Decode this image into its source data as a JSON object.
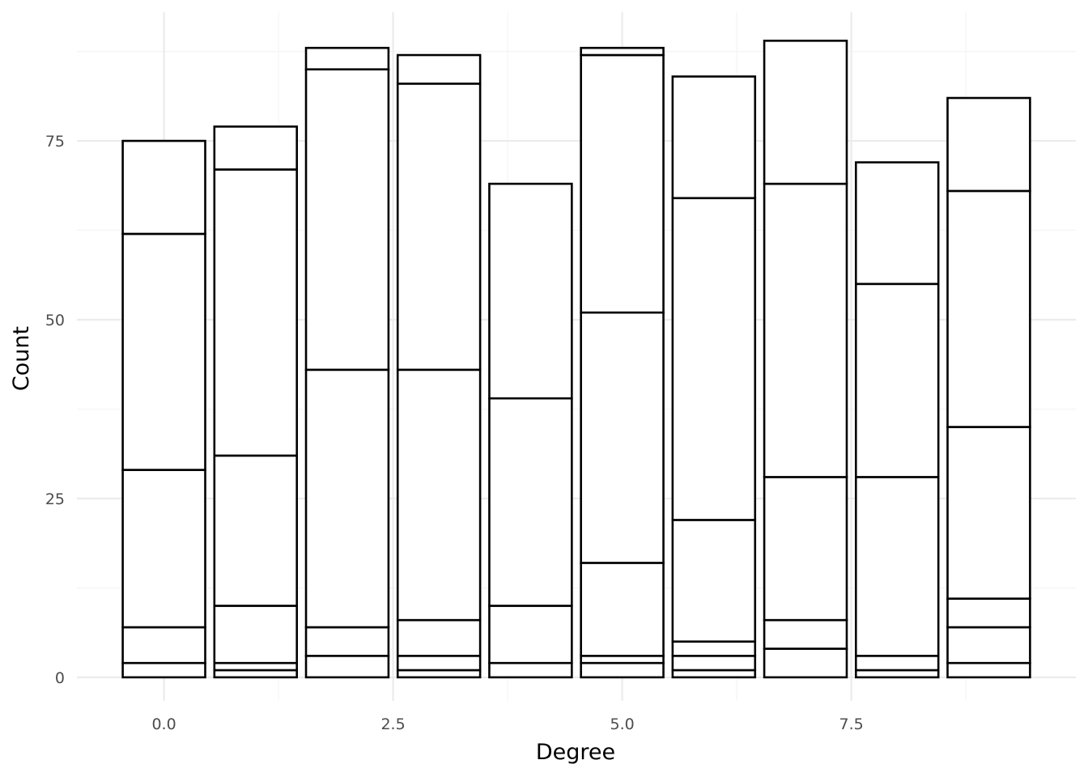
{
  "chart_data": {
    "type": "bar",
    "stacked": true,
    "title": "",
    "xlabel": "Degree",
    "ylabel": "Count",
    "x": [
      0,
      1,
      2,
      3,
      4,
      5,
      6,
      7,
      8,
      9
    ],
    "xlim": [
      -0.95,
      9.95
    ],
    "ylim": [
      -3.3,
      93
    ],
    "xticks": [
      0,
      2.5,
      5,
      7.5
    ],
    "xtick_labels": [
      "0.0",
      "2.5",
      "5.0",
      "7.5"
    ],
    "yticks": [
      0,
      25,
      50,
      75
    ],
    "ytick_labels": [
      "0",
      "25",
      "50",
      "75"
    ],
    "grid": true,
    "legend": "none",
    "fill_color": "#ffffff",
    "edge_color": "#000000",
    "stack_boundaries": [
      [
        2,
        7,
        29,
        62,
        75
      ],
      [
        1,
        2,
        10,
        31,
        71,
        77
      ],
      [
        3,
        7,
        43,
        85,
        88
      ],
      [
        1,
        3,
        8,
        43,
        83,
        87
      ],
      [
        2,
        10,
        39,
        69
      ],
      [
        2,
        3,
        16,
        51,
        87,
        88
      ],
      [
        1,
        3,
        5,
        22,
        67,
        84
      ],
      [
        4,
        8,
        28,
        69,
        89
      ],
      [
        1,
        3,
        28,
        55,
        72
      ],
      [
        2,
        7,
        11,
        35,
        68,
        81
      ]
    ]
  }
}
